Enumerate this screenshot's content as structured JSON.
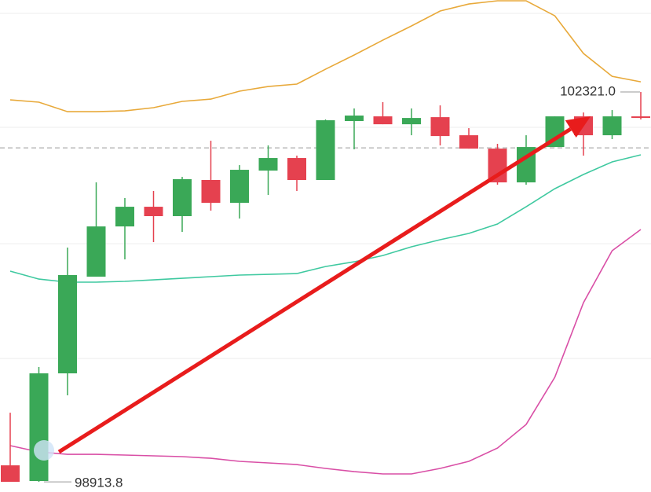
{
  "chart_data": {
    "type": "candlestick",
    "open": [
      99058,
      98921,
      99862,
      100707,
      101146,
      101318,
      101236,
      101552,
      101352,
      101634,
      101744,
      101552,
      102067,
      102108,
      102039,
      102101,
      101943,
      101826,
      101531,
      101840,
      102108,
      101943,
      102108
    ],
    "high": [
      99518,
      99917,
      100961,
      101531,
      101394,
      101456,
      101579,
      101895,
      101682,
      101854,
      101765,
      102081,
      102177,
      102232,
      102177,
      102204,
      102005,
      101868,
      101943,
      102108,
      102142,
      102163,
      102321.0
    ],
    "low": [
      98914,
      98913.8,
      99670,
      100707,
      100858,
      101009,
      101098,
      101284,
      101215,
      101421,
      101456,
      101552,
      101820,
      102039,
      101943,
      101854,
      101826,
      101511,
      101511,
      101840,
      101765,
      101909,
      102081
    ],
    "close": [
      98914,
      99862,
      100721,
      101146,
      101318,
      101236,
      101559,
      101352,
      101641,
      101744,
      101552,
      102074,
      102115,
      102039,
      102094,
      101936,
      101826,
      101531,
      101840,
      102108,
      101943,
      102108,
      102094
    ],
    "up_color": "#3aa857",
    "down_color": "#e5414f",
    "series": [
      {
        "color": "#e8a93a",
        "values": [
          102252,
          102232,
          102149,
          102149,
          102156,
          102184,
          102239,
          102259,
          102328,
          102369,
          102390,
          102520,
          102644,
          102774,
          102898,
          103029,
          103090,
          103118,
          103118,
          102987,
          102658,
          102458,
          102410
        ]
      },
      {
        "color": "#3fc9a0",
        "values": [
          100755,
          100686,
          100659,
          100659,
          100666,
          100679,
          100693,
          100707,
          100721,
          100727,
          100734,
          100796,
          100837,
          100892,
          100968,
          101030,
          101085,
          101167,
          101318,
          101476,
          101600,
          101710,
          101772
        ]
      },
      {
        "color": "#d94fa6",
        "values": [
          99230,
          99175,
          99154,
          99154,
          99148,
          99141,
          99134,
          99120,
          99093,
          99079,
          99065,
          99031,
          99003,
          98983,
          98983,
          99031,
          99093,
          99209,
          99415,
          99828,
          100480,
          100934,
          101119
        ]
      }
    ],
    "ylim": [
      98825,
      103125
    ],
    "grid_values": [
      103008,
      102012,
      100995,
      99992
    ],
    "price_line": 101833,
    "high_label": {
      "value": 102321.0,
      "label": "102321.0"
    },
    "low_label": {
      "value": 98913.8,
      "label": "98913.8"
    },
    "arrow": {
      "from": [
        1.7,
        99175
      ],
      "to": [
        20.25,
        102108
      ],
      "color": "#e81c1c"
    }
  }
}
